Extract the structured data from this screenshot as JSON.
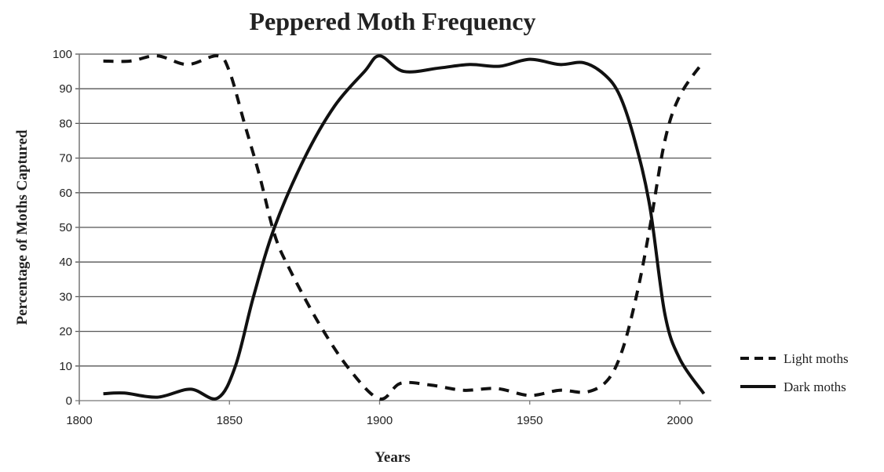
{
  "chart_data": {
    "type": "line",
    "title": "Peppered Moth Frequency",
    "xlabel": "Years",
    "ylabel": "Percentage of Moths Captured",
    "xlim": [
      1800,
      2011
    ],
    "ylim": [
      0,
      100
    ],
    "xticks": [
      1800,
      1850,
      1900,
      1950,
      2000
    ],
    "yticks": [
      0,
      10,
      20,
      30,
      40,
      50,
      60,
      70,
      80,
      90,
      100
    ],
    "grid": "horizontal",
    "legend_position": "right",
    "series": [
      {
        "name": "Light moths",
        "style": "dashed",
        "color": "#111111",
        "x": [
          1808,
          1817,
          1826,
          1836,
          1846,
          1850,
          1855,
          1860,
          1865,
          1870,
          1880,
          1890,
          1900,
          1907,
          1917,
          1928,
          1939,
          1950,
          1960,
          1969,
          1976,
          1981,
          1986,
          1990,
          1995,
          2000,
          2008
        ],
        "y": [
          98,
          98,
          99.5,
          97,
          99.5,
          95,
          80,
          65,
          48,
          38,
          22,
          9,
          0.5,
          5,
          4.5,
          3,
          3.5,
          1.5,
          3,
          2.5,
          6,
          15,
          32,
          50,
          75,
          88,
          98
        ]
      },
      {
        "name": "Dark moths",
        "style": "solid",
        "color": "#111111",
        "x": [
          1808,
          1815,
          1826,
          1837,
          1846,
          1852,
          1858,
          1865,
          1875,
          1885,
          1895,
          1900,
          1908,
          1920,
          1930,
          1940,
          1950,
          1960,
          1968,
          1975,
          1980,
          1985,
          1990,
          1995,
          2000,
          2008
        ],
        "y": [
          2,
          2.2,
          1,
          3.3,
          0.7,
          10,
          30,
          50,
          70,
          85,
          95,
          99.5,
          95,
          96,
          97,
          96.5,
          98.5,
          97,
          97.5,
          94,
          88,
          75,
          56,
          25,
          12,
          2
        ]
      }
    ]
  }
}
